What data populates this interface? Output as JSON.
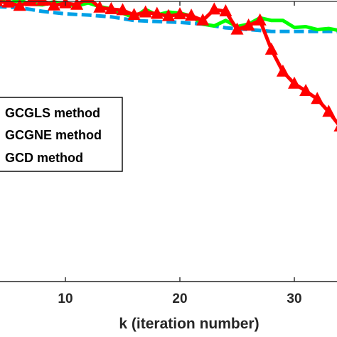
{
  "chart_data": {
    "type": "line",
    "xlabel": "k (iteration number)",
    "x_ticks": [
      10,
      20,
      30
    ],
    "xlim": [
      4,
      35.5
    ],
    "ylim": [
      0,
      1
    ],
    "grid": false,
    "legend_placement": "left",
    "series": [
      {
        "name": "GCGLS method",
        "color": "#00a0e6",
        "style": "dashed",
        "marker": "none",
        "x": [
          4,
          6,
          8,
          10,
          12,
          14,
          15,
          16,
          18,
          20,
          22,
          24,
          26,
          28,
          30,
          32,
          34,
          35.5
        ],
        "y": [
          0.838,
          0.835,
          0.825,
          0.818,
          0.815,
          0.81,
          0.805,
          0.8,
          0.797,
          0.795,
          0.79,
          0.78,
          0.775,
          0.77,
          0.77,
          0.77,
          0.77,
          0.77
        ]
      },
      {
        "name": "GCGNE method",
        "color": "#00ff00",
        "style": "solid",
        "marker": "none",
        "x": [
          4,
          5,
          6,
          7,
          8,
          9,
          10,
          11,
          12,
          13,
          14,
          15,
          16,
          17,
          18,
          19,
          20,
          21,
          22,
          23,
          24,
          25,
          26,
          27,
          28,
          29,
          30,
          31,
          32,
          33,
          34,
          35.5
        ],
        "y": [
          0.858,
          0.848,
          0.855,
          0.845,
          0.843,
          0.851,
          0.844,
          0.84,
          0.848,
          0.838,
          0.832,
          0.82,
          0.808,
          0.83,
          0.815,
          0.823,
          0.82,
          0.812,
          0.79,
          0.785,
          0.8,
          0.783,
          0.79,
          0.807,
          0.8,
          0.8,
          0.781,
          0.783,
          0.775,
          0.778,
          0.772,
          0.8
        ]
      },
      {
        "name": "GCD method",
        "color": "#ff0000",
        "style": "solid",
        "marker": "triangle",
        "x": [
          4,
          5,
          6,
          7,
          8,
          9,
          10,
          11,
          12,
          13,
          14,
          15,
          16,
          17,
          18,
          19,
          20,
          21,
          22,
          23,
          24,
          25,
          26,
          27,
          28,
          29,
          30,
          31,
          32,
          33,
          34
        ],
        "y": [
          0.852,
          0.849,
          0.84,
          0.853,
          0.854,
          0.841,
          0.847,
          0.843,
          0.862,
          0.835,
          0.831,
          0.828,
          0.815,
          0.822,
          0.818,
          0.812,
          0.817,
          0.813,
          0.8,
          0.83,
          0.825,
          0.775,
          0.786,
          0.8,
          0.72,
          0.66,
          0.627,
          0.607,
          0.585,
          0.55,
          0.51
        ]
      }
    ]
  }
}
